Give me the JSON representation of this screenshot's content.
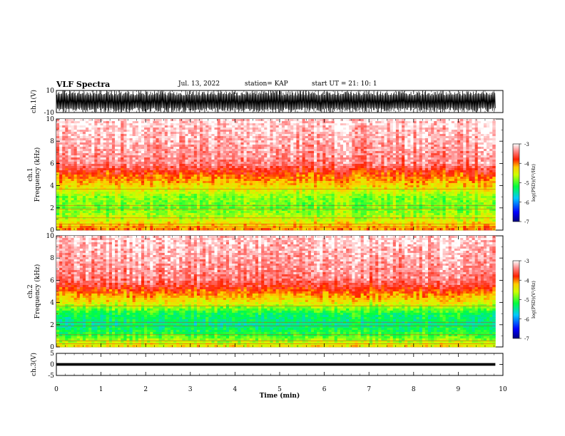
{
  "header": {
    "title": "VLF Spectra",
    "date": "Jul. 13, 2022",
    "station": "station= KAP",
    "start": "start UT = 21: 10: 1"
  },
  "chart_data": [
    {
      "type": "line",
      "panel": "ch1-waveform",
      "ylabel": "ch.1(V)",
      "ylim": [
        -10,
        10
      ],
      "yticks": [
        "10",
        "-10"
      ],
      "color": "#000000",
      "description_values": {
        "envelope_min": -10,
        "envelope_max": 10
      }
    },
    {
      "type": "heatmap",
      "panel": "ch1-spectrogram",
      "ylabel": "ch.1\nFrequency (kHz)",
      "ylim": [
        0,
        10
      ],
      "yticks": [
        "10",
        "8",
        "6",
        "4",
        "2",
        "0"
      ],
      "xlim": [
        0,
        10
      ],
      "colorbar": {
        "label": "log(PSD)(V²/Hz)",
        "ticks": [
          "-3",
          "-4",
          "-5",
          "-6",
          "-7"
        ],
        "range": [
          -7,
          -3
        ]
      },
      "bands_khz_to_logpsd": [
        [
          0,
          -4.0
        ],
        [
          1.0,
          -4.6
        ],
        [
          2.0,
          -4.9
        ],
        [
          3.0,
          -4.8
        ],
        [
          4.0,
          -4.3
        ],
        [
          5.0,
          -3.9
        ],
        [
          6.0,
          -3.4
        ],
        [
          10.0,
          -3.1
        ]
      ]
    },
    {
      "type": "heatmap",
      "panel": "ch2-spectrogram",
      "ylabel": "ch.2\nFrequency (kHz)",
      "ylim": [
        0,
        10
      ],
      "yticks": [
        "10",
        "8",
        "6",
        "4",
        "2",
        "0"
      ],
      "xlim": [
        0,
        10
      ],
      "colorbar": {
        "label": "log(PSD)(V²/Hz)",
        "ticks": [
          "-3",
          "-4",
          "-5",
          "-6",
          "-7"
        ],
        "range": [
          -7,
          -3
        ]
      },
      "bands_khz_to_logpsd": [
        [
          0,
          -4.3
        ],
        [
          1.0,
          -5.0
        ],
        [
          2.0,
          -5.4
        ],
        [
          3.0,
          -5.2
        ],
        [
          4.0,
          -4.4
        ],
        [
          5.0,
          -3.9
        ],
        [
          6.0,
          -3.4
        ],
        [
          10.0,
          -3.1
        ]
      ]
    },
    {
      "type": "line",
      "panel": "ch3-waveform",
      "ylabel": "ch.3(V)",
      "ylim": [
        -5,
        5
      ],
      "yticks": [
        "5",
        "0",
        "-5"
      ],
      "color": "#000000",
      "description_values": {
        "envelope_min": -0.6,
        "envelope_max": 0.6
      }
    }
  ],
  "xaxis": {
    "label": "Time (min)",
    "xlim": [
      0,
      10
    ],
    "ticks": [
      "0",
      "1",
      "2",
      "3",
      "4",
      "5",
      "6",
      "7",
      "8",
      "9",
      "10"
    ],
    "data_end_min": 9.83
  }
}
